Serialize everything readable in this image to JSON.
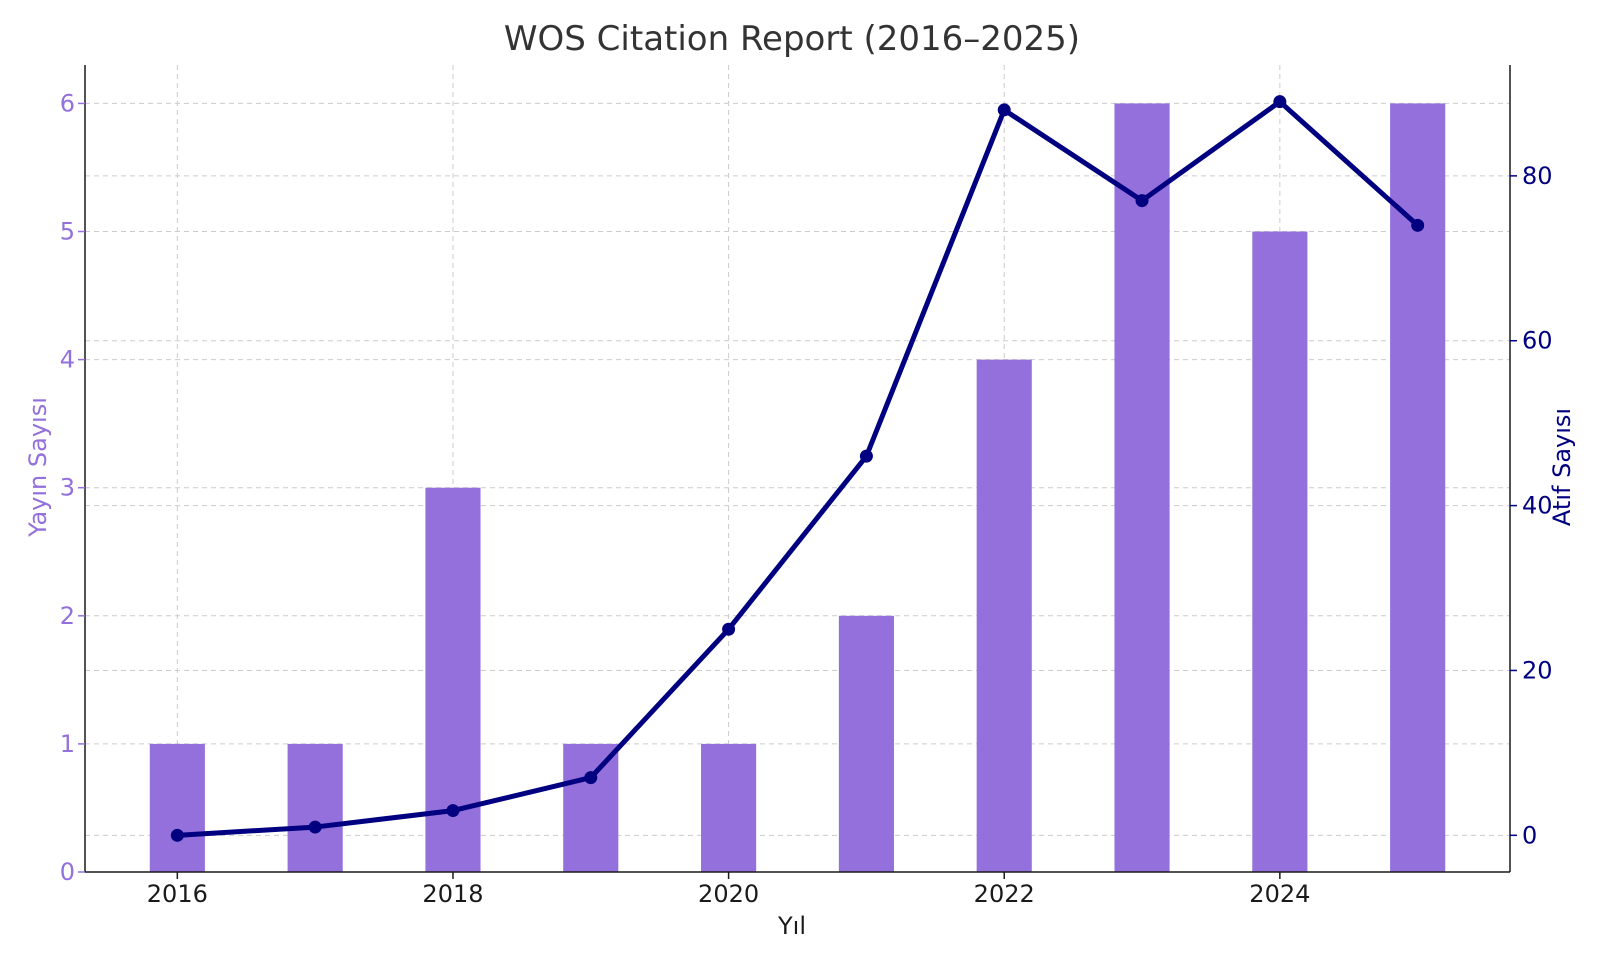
{
  "chart_data": {
    "type": "bar+line",
    "title": "WOS Citation Report (2016–2025)",
    "xlabel": "Yıl",
    "ylabel_left": "Yayın Sayısı",
    "ylabel_right": "Atıf Sayısı",
    "categories": [
      2016,
      2017,
      2018,
      2019,
      2020,
      2021,
      2022,
      2023,
      2024,
      2025
    ],
    "x_tick_labels": [
      "2016",
      "2018",
      "2020",
      "2022",
      "2024"
    ],
    "x_tick_values": [
      2016,
      2018,
      2020,
      2022,
      2024
    ],
    "xlim": [
      2015.33,
      2025.67
    ],
    "series": [
      {
        "name": "Yayın Sayısı",
        "type": "bar",
        "axis": "left",
        "color": "#9370DB",
        "values": [
          1,
          1,
          3,
          1,
          1,
          2,
          4,
          6,
          5,
          6
        ]
      },
      {
        "name": "Atıf Sayısı",
        "type": "line",
        "axis": "right",
        "color": "#000080",
        "values": [
          0,
          1,
          3,
          7,
          25,
          46,
          88,
          77,
          89,
          74
        ]
      }
    ],
    "ylim_left": [
      0,
      6.3
    ],
    "ylim_right": [
      -4.45,
      93.45
    ],
    "yticks_left": [
      0,
      1,
      2,
      3,
      4,
      5,
      6
    ],
    "yticks_right": [
      0,
      20,
      40,
      60,
      80
    ],
    "grid": true,
    "colors": {
      "left_axis": "#9370DB",
      "right_axis": "#000080",
      "grid": "#cccccc",
      "axis_line": "#1a1a1a"
    }
  }
}
